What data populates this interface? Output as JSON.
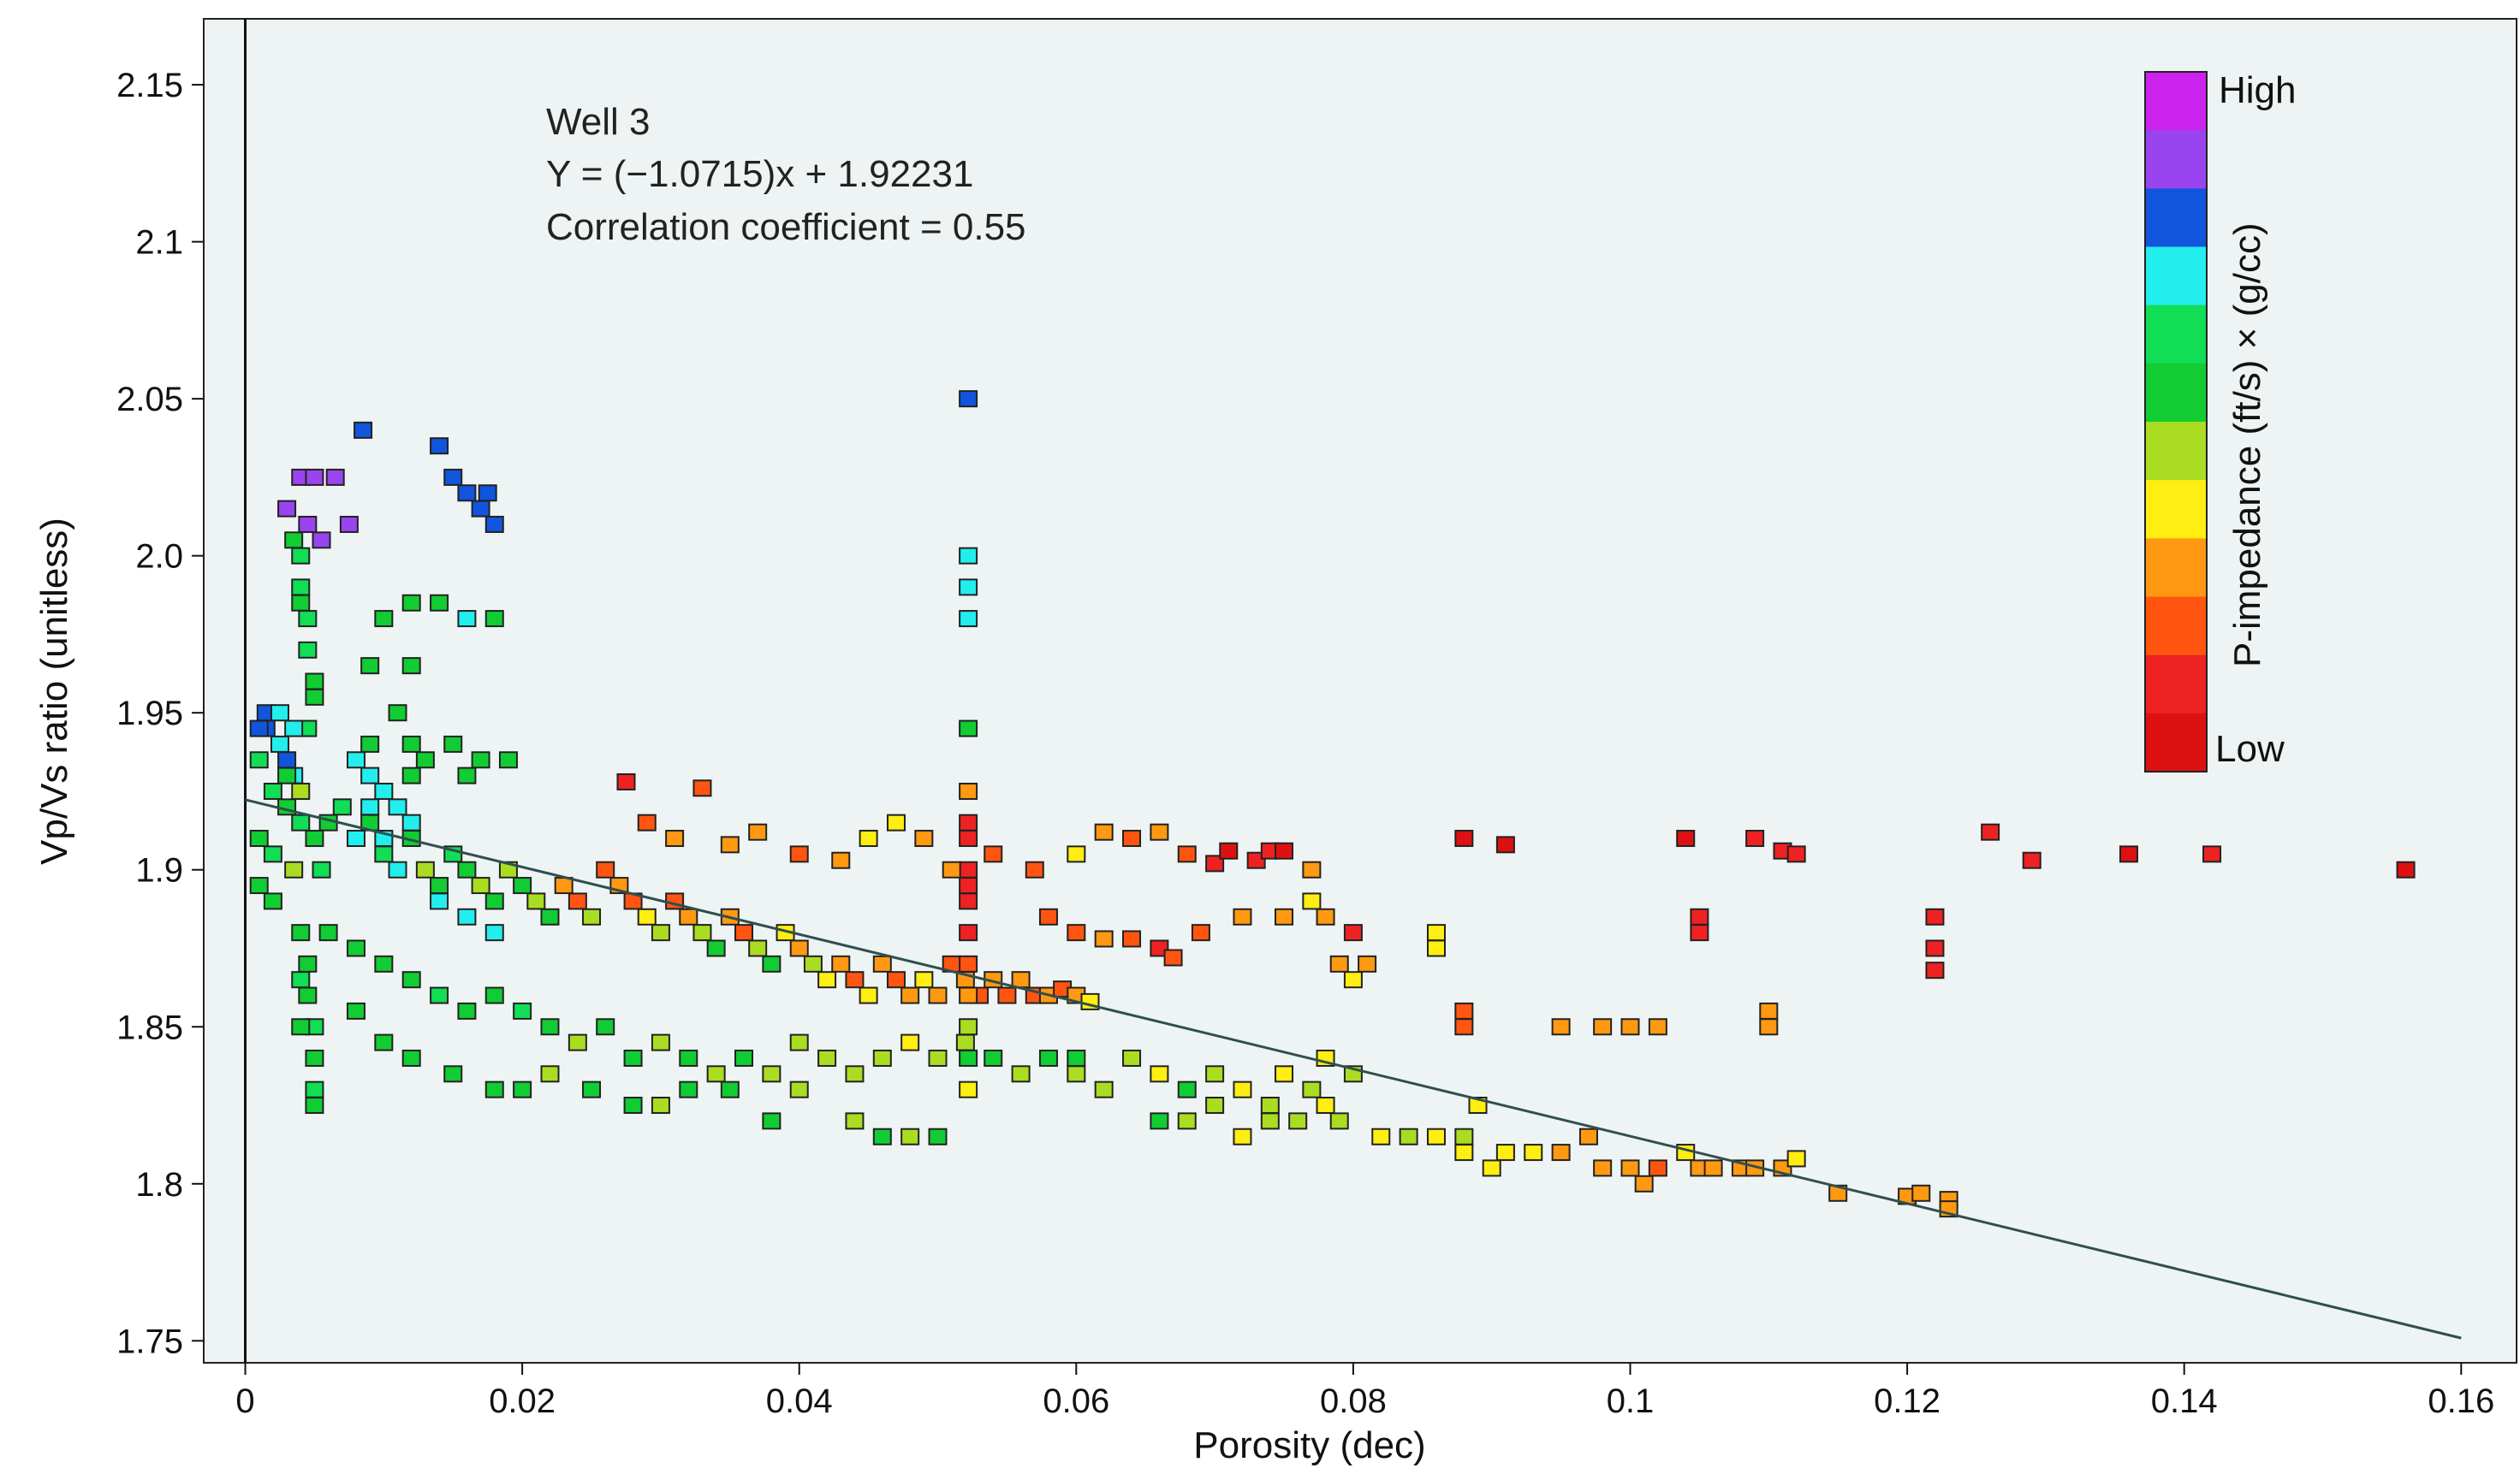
{
  "chart_data": {
    "type": "scatter",
    "title": "",
    "xlabel": "Porosity (dec)",
    "ylabel": "Vp/Vs ratio (unitless)",
    "xlim": [
      -0.003,
      0.164
    ],
    "ylim": [
      1.743,
      2.171
    ],
    "x_ticks": [
      0,
      0.02,
      0.04,
      0.06,
      0.08,
      0.1,
      0.12,
      0.14,
      0.16
    ],
    "x_tick_labels": [
      "0",
      "0.02",
      "0.04",
      "0.06",
      "0.08",
      "0.1",
      "0.12",
      "0.14",
      "0.16"
    ],
    "y_ticks": [
      1.75,
      1.8,
      1.85,
      1.9,
      1.95,
      2.0,
      2.05,
      2.1,
      2.15
    ],
    "y_tick_labels": [
      "1.75",
      "1.8",
      "1.85",
      "1.9",
      "1.95",
      "2.0",
      "2.05",
      "2.1",
      "2.15"
    ],
    "grid": false,
    "background": "#eef3f3",
    "annotations": [
      "Well 3",
      "Y = (−1.0715)x + 1.92231",
      "Correlation coefficient =  0.55"
    ],
    "regression": {
      "slope": -1.0715,
      "intercept": 1.92231,
      "x_range": [
        0,
        0.16
      ]
    },
    "colorbar": {
      "label": "P-impedance (ft/s) × (g/cc)",
      "high_label": "High",
      "low_label": "Low",
      "colors": [
        "#cc22ee",
        "#9944ee",
        "#1155dd",
        "#22eeee",
        "#11dd55",
        "#11cc33",
        "#aadd22",
        "#ffee11",
        "#ff9911",
        "#ff5511",
        "#ee2222",
        "#dd1111"
      ]
    },
    "points": [
      [
        0.0015,
        1.945,
        2
      ],
      [
        0.0025,
        1.94,
        3
      ],
      [
        0.003,
        1.935,
        2
      ],
      [
        0.0035,
        1.93,
        3
      ],
      [
        0.001,
        1.935,
        4
      ],
      [
        0.002,
        1.925,
        4
      ],
      [
        0.003,
        1.92,
        5
      ],
      [
        0.004,
        1.915,
        4
      ],
      [
        0.001,
        1.91,
        5
      ],
      [
        0.002,
        1.905,
        4
      ],
      [
        0.0035,
        1.9,
        6
      ],
      [
        0.005,
        1.91,
        5
      ],
      [
        0.0055,
        1.9,
        4
      ],
      [
        0.001,
        1.895,
        5
      ],
      [
        0.002,
        1.89,
        5
      ],
      [
        0.003,
        1.93,
        5
      ],
      [
        0.004,
        1.925,
        6
      ],
      [
        0.006,
        1.915,
        5
      ],
      [
        0.007,
        1.92,
        4
      ],
      [
        0.008,
        1.91,
        3
      ],
      [
        0.009,
        1.915,
        5
      ],
      [
        0.01,
        1.905,
        4
      ],
      [
        0.011,
        1.9,
        3
      ],
      [
        0.012,
        1.91,
        5
      ],
      [
        0.013,
        1.9,
        6
      ],
      [
        0.014,
        1.895,
        5
      ],
      [
        0.015,
        1.905,
        4
      ],
      [
        0.016,
        1.9,
        5
      ],
      [
        0.017,
        1.895,
        6
      ],
      [
        0.018,
        1.89,
        5
      ],
      [
        0.019,
        1.9,
        6
      ],
      [
        0.02,
        1.895,
        5
      ],
      [
        0.021,
        1.89,
        6
      ],
      [
        0.022,
        1.885,
        5
      ],
      [
        0.023,
        1.895,
        8
      ],
      [
        0.024,
        1.89,
        9
      ],
      [
        0.025,
        1.885,
        6
      ],
      [
        0.026,
        1.9,
        9
      ],
      [
        0.027,
        1.895,
        8
      ],
      [
        0.028,
        1.89,
        9
      ],
      [
        0.029,
        1.885,
        7
      ],
      [
        0.03,
        1.88,
        6
      ],
      [
        0.031,
        1.89,
        9
      ],
      [
        0.032,
        1.885,
        8
      ],
      [
        0.033,
        1.88,
        6
      ],
      [
        0.034,
        1.875,
        5
      ],
      [
        0.035,
        1.885,
        8
      ],
      [
        0.036,
        1.88,
        9
      ],
      [
        0.037,
        1.875,
        6
      ],
      [
        0.038,
        1.87,
        5
      ],
      [
        0.039,
        1.88,
        7
      ],
      [
        0.04,
        1.875,
        8
      ],
      [
        0.041,
        1.87,
        6
      ],
      [
        0.042,
        1.865,
        7
      ],
      [
        0.043,
        1.87,
        8
      ],
      [
        0.044,
        1.865,
        9
      ],
      [
        0.045,
        1.86,
        7
      ],
      [
        0.046,
        1.87,
        8
      ],
      [
        0.047,
        1.865,
        9
      ],
      [
        0.048,
        1.86,
        8
      ],
      [
        0.049,
        1.865,
        7
      ],
      [
        0.05,
        1.86,
        8
      ],
      [
        0.051,
        1.87,
        9
      ],
      [
        0.052,
        1.865,
        8
      ],
      [
        0.053,
        1.86,
        9
      ],
      [
        0.054,
        1.865,
        8
      ],
      [
        0.055,
        1.86,
        9
      ],
      [
        0.056,
        1.865,
        8
      ],
      [
        0.057,
        1.86,
        9
      ],
      [
        0.058,
        1.86,
        8
      ],
      [
        0.059,
        1.862,
        9
      ],
      [
        0.06,
        1.86,
        8
      ],
      [
        0.061,
        1.858,
        7
      ],
      [
        0.006,
        1.88,
        5
      ],
      [
        0.008,
        1.875,
        5
      ],
      [
        0.01,
        1.87,
        5
      ],
      [
        0.012,
        1.865,
        5
      ],
      [
        0.014,
        1.86,
        4
      ],
      [
        0.016,
        1.855,
        5
      ],
      [
        0.018,
        1.86,
        5
      ],
      [
        0.02,
        1.855,
        4
      ],
      [
        0.022,
        1.85,
        5
      ],
      [
        0.024,
        1.845,
        6
      ],
      [
        0.026,
        1.85,
        5
      ],
      [
        0.028,
        1.84,
        5
      ],
      [
        0.03,
        1.845,
        6
      ],
      [
        0.032,
        1.84,
        5
      ],
      [
        0.034,
        1.835,
        6
      ],
      [
        0.036,
        1.84,
        5
      ],
      [
        0.038,
        1.835,
        6
      ],
      [
        0.04,
        1.845,
        6
      ],
      [
        0.042,
        1.84,
        6
      ],
      [
        0.044,
        1.835,
        6
      ],
      [
        0.046,
        1.84,
        6
      ],
      [
        0.048,
        1.845,
        7
      ],
      [
        0.05,
        1.84,
        6
      ],
      [
        0.052,
        1.845,
        6
      ],
      [
        0.054,
        1.84,
        5
      ],
      [
        0.056,
        1.835,
        6
      ],
      [
        0.058,
        1.84,
        5
      ],
      [
        0.06,
        1.835,
        6
      ],
      [
        0.008,
        1.855,
        5
      ],
      [
        0.01,
        1.845,
        5
      ],
      [
        0.012,
        1.84,
        5
      ],
      [
        0.015,
        1.835,
        5
      ],
      [
        0.018,
        1.83,
        5
      ],
      [
        0.02,
        1.83,
        5
      ],
      [
        0.022,
        1.835,
        6
      ],
      [
        0.025,
        1.83,
        5
      ],
      [
        0.028,
        1.825,
        5
      ],
      [
        0.03,
        1.825,
        6
      ],
      [
        0.032,
        1.83,
        5
      ],
      [
        0.035,
        1.83,
        5
      ],
      [
        0.038,
        1.82,
        5
      ],
      [
        0.04,
        1.83,
        6
      ],
      [
        0.044,
        1.82,
        6
      ],
      [
        0.046,
        1.815,
        5
      ],
      [
        0.048,
        1.815,
        6
      ],
      [
        0.05,
        1.815,
        5
      ],
      [
        0.004,
        1.88,
        5
      ],
      [
        0.004,
        1.865,
        4
      ],
      [
        0.0045,
        1.86,
        5
      ],
      [
        0.005,
        1.85,
        4
      ],
      [
        0.005,
        1.84,
        5
      ],
      [
        0.005,
        1.83,
        4
      ],
      [
        0.005,
        1.825,
        5
      ],
      [
        0.0045,
        1.87,
        5
      ],
      [
        0.004,
        1.85,
        5
      ],
      [
        0.005,
        1.955,
        5
      ],
      [
        0.0045,
        1.945,
        4
      ],
      [
        0.0045,
        1.97,
        4
      ],
      [
        0.005,
        1.96,
        5
      ],
      [
        0.004,
        1.985,
        5
      ],
      [
        0.0045,
        1.98,
        4
      ],
      [
        0.0035,
        2.005,
        5
      ],
      [
        0.004,
        2.0,
        4
      ],
      [
        0.004,
        1.99,
        4
      ],
      [
        0.004,
        2.025,
        1
      ],
      [
        0.005,
        2.025,
        1
      ],
      [
        0.0065,
        2.025,
        1
      ],
      [
        0.003,
        2.015,
        1
      ],
      [
        0.0045,
        2.01,
        1
      ],
      [
        0.0055,
        2.005,
        1
      ],
      [
        0.0075,
        2.01,
        1
      ],
      [
        0.0085,
        2.04,
        2
      ],
      [
        0.014,
        2.035,
        2
      ],
      [
        0.015,
        2.025,
        2
      ],
      [
        0.016,
        2.02,
        2
      ],
      [
        0.017,
        2.015,
        2
      ],
      [
        0.018,
        2.01,
        2
      ],
      [
        0.0175,
        2.02,
        2
      ],
      [
        0.0015,
        1.95,
        2
      ],
      [
        0.0025,
        1.95,
        3
      ],
      [
        0.0035,
        1.945,
        3
      ],
      [
        0.001,
        1.945,
        2
      ],
      [
        0.012,
        1.985,
        5
      ],
      [
        0.014,
        1.985,
        5
      ],
      [
        0.01,
        1.98,
        5
      ],
      [
        0.016,
        1.98,
        3
      ],
      [
        0.018,
        1.98,
        5
      ],
      [
        0.012,
        1.965,
        5
      ],
      [
        0.009,
        1.965,
        5
      ],
      [
        0.011,
        1.95,
        5
      ],
      [
        0.012,
        1.94,
        5
      ],
      [
        0.009,
        1.94,
        5
      ],
      [
        0.013,
        1.935,
        5
      ],
      [
        0.015,
        1.94,
        5
      ],
      [
        0.017,
        1.935,
        5
      ],
      [
        0.019,
        1.935,
        5
      ],
      [
        0.016,
        1.93,
        5
      ],
      [
        0.012,
        1.93,
        5
      ],
      [
        0.008,
        1.935,
        3
      ],
      [
        0.009,
        1.93,
        3
      ],
      [
        0.01,
        1.925,
        3
      ],
      [
        0.011,
        1.92,
        3
      ],
      [
        0.012,
        1.915,
        3
      ],
      [
        0.01,
        1.91,
        3
      ],
      [
        0.009,
        1.92,
        3
      ],
      [
        0.014,
        1.89,
        3
      ],
      [
        0.016,
        1.885,
        3
      ],
      [
        0.018,
        1.88,
        3
      ],
      [
        0.0522,
        2.05,
        2
      ],
      [
        0.0522,
        2.0,
        3
      ],
      [
        0.0522,
        1.99,
        3
      ],
      [
        0.0522,
        1.98,
        3
      ],
      [
        0.0522,
        1.945,
        5
      ],
      [
        0.0522,
        1.925,
        8
      ],
      [
        0.0522,
        1.915,
        10
      ],
      [
        0.0522,
        1.91,
        10
      ],
      [
        0.0522,
        1.9,
        10
      ],
      [
        0.0522,
        1.895,
        10
      ],
      [
        0.0522,
        1.89,
        10
      ],
      [
        0.0522,
        1.88,
        10
      ],
      [
        0.0522,
        1.87,
        9
      ],
      [
        0.0522,
        1.86,
        8
      ],
      [
        0.0522,
        1.85,
        6
      ],
      [
        0.0522,
        1.84,
        5
      ],
      [
        0.0522,
        1.83,
        7
      ],
      [
        0.0275,
        1.928,
        10
      ],
      [
        0.033,
        1.926,
        9
      ],
      [
        0.029,
        1.915,
        9
      ],
      [
        0.031,
        1.91,
        8
      ],
      [
        0.035,
        1.908,
        8
      ],
      [
        0.037,
        1.912,
        8
      ],
      [
        0.04,
        1.905,
        9
      ],
      [
        0.043,
        1.903,
        8
      ],
      [
        0.045,
        1.91,
        7
      ],
      [
        0.047,
        1.915,
        7
      ],
      [
        0.049,
        1.91,
        8
      ],
      [
        0.051,
        1.9,
        8
      ],
      [
        0.054,
        1.905,
        9
      ],
      [
        0.057,
        1.9,
        9
      ],
      [
        0.06,
        1.905,
        7
      ],
      [
        0.062,
        1.912,
        8
      ],
      [
        0.064,
        1.91,
        9
      ],
      [
        0.066,
        1.912,
        8
      ],
      [
        0.068,
        1.905,
        9
      ],
      [
        0.07,
        1.902,
        10
      ],
      [
        0.071,
        1.906,
        11
      ],
      [
        0.073,
        1.903,
        10
      ],
      [
        0.074,
        1.906,
        10
      ],
      [
        0.075,
        1.906,
        11
      ],
      [
        0.077,
        1.9,
        8
      ],
      [
        0.058,
        1.885,
        9
      ],
      [
        0.06,
        1.88,
        9
      ],
      [
        0.062,
        1.878,
        8
      ],
      [
        0.064,
        1.878,
        9
      ],
      [
        0.066,
        1.875,
        10
      ],
      [
        0.067,
        1.872,
        9
      ],
      [
        0.069,
        1.88,
        9
      ],
      [
        0.072,
        1.885,
        8
      ],
      [
        0.075,
        1.885,
        8
      ],
      [
        0.077,
        1.89,
        7
      ],
      [
        0.078,
        1.885,
        8
      ],
      [
        0.08,
        1.88,
        10
      ],
      [
        0.079,
        1.87,
        8
      ],
      [
        0.08,
        1.865,
        7
      ],
      [
        0.081,
        1.87,
        8
      ],
      [
        0.086,
        1.88,
        7
      ],
      [
        0.086,
        1.875,
        7
      ],
      [
        0.088,
        1.855,
        9
      ],
      [
        0.088,
        1.85,
        9
      ],
      [
        0.095,
        1.85,
        8
      ],
      [
        0.098,
        1.85,
        8
      ],
      [
        0.1,
        1.85,
        8
      ],
      [
        0.102,
        1.85,
        8
      ],
      [
        0.11,
        1.855,
        8
      ],
      [
        0.11,
        1.85,
        8
      ],
      [
        0.088,
        1.91,
        11
      ],
      [
        0.091,
        1.908,
        11
      ],
      [
        0.104,
        1.91,
        11
      ],
      [
        0.105,
        1.885,
        10
      ],
      [
        0.105,
        1.88,
        10
      ],
      [
        0.109,
        1.91,
        10
      ],
      [
        0.111,
        1.906,
        10
      ],
      [
        0.112,
        1.905,
        10
      ],
      [
        0.122,
        1.885,
        10
      ],
      [
        0.122,
        1.875,
        10
      ],
      [
        0.122,
        1.868,
        10
      ],
      [
        0.126,
        1.912,
        10
      ],
      [
        0.129,
        1.903,
        10
      ],
      [
        0.136,
        1.905,
        11
      ],
      [
        0.142,
        1.905,
        10
      ],
      [
        0.156,
        1.9,
        11
      ],
      [
        0.06,
        1.84,
        5
      ],
      [
        0.062,
        1.83,
        6
      ],
      [
        0.064,
        1.84,
        6
      ],
      [
        0.066,
        1.835,
        7
      ],
      [
        0.068,
        1.82,
        6
      ],
      [
        0.07,
        1.835,
        6
      ],
      [
        0.072,
        1.83,
        7
      ],
      [
        0.074,
        1.825,
        6
      ],
      [
        0.075,
        1.835,
        7
      ],
      [
        0.077,
        1.83,
        6
      ],
      [
        0.078,
        1.825,
        7
      ],
      [
        0.078,
        1.84,
        7
      ],
      [
        0.08,
        1.835,
        6
      ],
      [
        0.082,
        1.815,
        7
      ],
      [
        0.084,
        1.815,
        6
      ],
      [
        0.086,
        1.815,
        7
      ],
      [
        0.088,
        1.815,
        6
      ],
      [
        0.088,
        1.81,
        7
      ],
      [
        0.089,
        1.825,
        7
      ],
      [
        0.09,
        1.805,
        7
      ],
      [
        0.091,
        1.81,
        7
      ],
      [
        0.093,
        1.81,
        7
      ],
      [
        0.095,
        1.81,
        8
      ],
      [
        0.097,
        1.815,
        8
      ],
      [
        0.098,
        1.805,
        8
      ],
      [
        0.1,
        1.805,
        8
      ],
      [
        0.101,
        1.8,
        8
      ],
      [
        0.102,
        1.805,
        9
      ],
      [
        0.104,
        1.81,
        7
      ],
      [
        0.105,
        1.805,
        8
      ],
      [
        0.106,
        1.805,
        8
      ],
      [
        0.108,
        1.805,
        8
      ],
      [
        0.109,
        1.805,
        8
      ],
      [
        0.111,
        1.805,
        8
      ],
      [
        0.112,
        1.808,
        7
      ],
      [
        0.115,
        1.797,
        8
      ],
      [
        0.12,
        1.796,
        8
      ],
      [
        0.121,
        1.797,
        8
      ],
      [
        0.123,
        1.795,
        8
      ],
      [
        0.123,
        1.792,
        8
      ],
      [
        0.066,
        1.82,
        5
      ],
      [
        0.068,
        1.83,
        5
      ],
      [
        0.07,
        1.825,
        6
      ],
      [
        0.072,
        1.815,
        7
      ],
      [
        0.074,
        1.82,
        6
      ],
      [
        0.076,
        1.82,
        6
      ],
      [
        0.079,
        1.82,
        6
      ]
    ]
  }
}
